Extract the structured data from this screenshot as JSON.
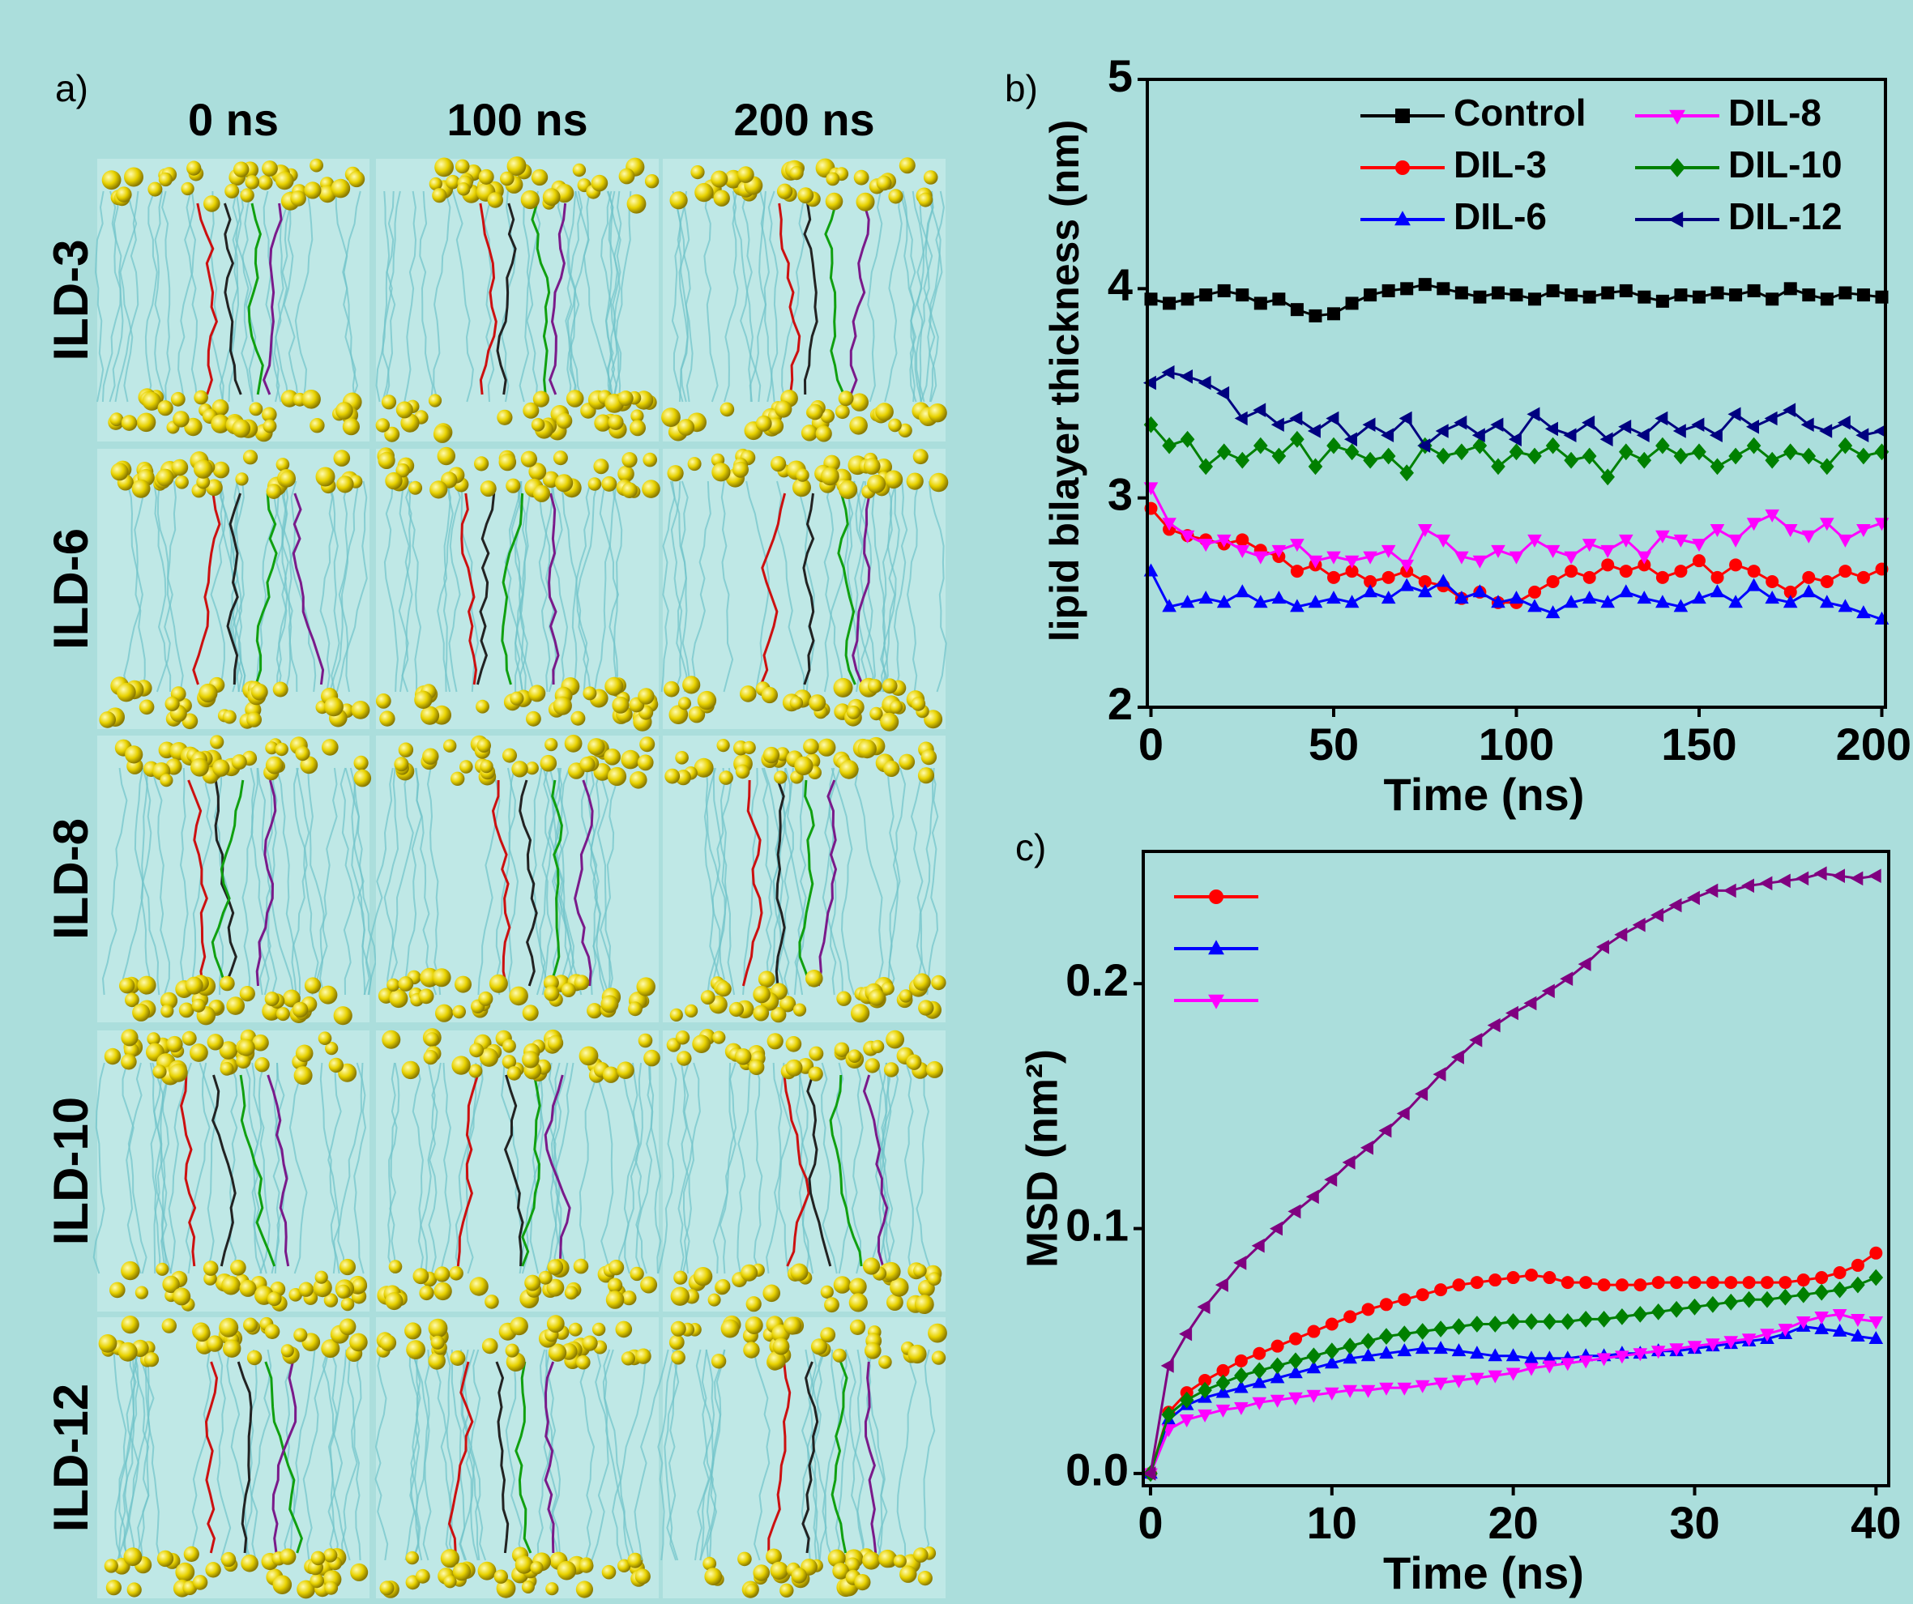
{
  "panel_a": {
    "label": "a)",
    "columns": [
      "0 ns",
      "100 ns",
      "200 ns"
    ],
    "rows": [
      "ILD-3",
      "ILD-6",
      "ILD-8",
      "ILD-10",
      "ILD-12"
    ]
  },
  "chart_data": [
    {
      "type": "line",
      "panel_label": "b)",
      "xlabel": "Time (ns)",
      "ylabel": "lipid bilayer thickness (nm)",
      "xlim": [
        -1,
        201
      ],
      "ylim": [
        2,
        5
      ],
      "xticks": [
        0,
        50,
        100,
        150,
        200
      ],
      "yticks": [
        2,
        3,
        4,
        5
      ],
      "legend": {
        "position": "upper-right",
        "columns": 2
      },
      "x": [
        0,
        5,
        10,
        15,
        20,
        25,
        30,
        35,
        40,
        45,
        50,
        55,
        60,
        65,
        70,
        75,
        80,
        85,
        90,
        95,
        100,
        105,
        110,
        115,
        120,
        125,
        130,
        135,
        140,
        145,
        150,
        155,
        160,
        165,
        170,
        175,
        180,
        185,
        190,
        195,
        200
      ],
      "series": [
        {
          "name": "Control",
          "color": "#000000",
          "marker": "square",
          "values": [
            3.95,
            3.93,
            3.95,
            3.97,
            3.99,
            3.97,
            3.93,
            3.95,
            3.9,
            3.87,
            3.88,
            3.93,
            3.97,
            3.99,
            4.0,
            4.02,
            4.0,
            3.98,
            3.96,
            3.98,
            3.97,
            3.95,
            3.99,
            3.97,
            3.96,
            3.98,
            3.99,
            3.96,
            3.94,
            3.97,
            3.96,
            3.98,
            3.97,
            3.99,
            3.95,
            4.0,
            3.97,
            3.95,
            3.98,
            3.97,
            3.96
          ]
        },
        {
          "name": "DIL-3",
          "color": "#ff0000",
          "marker": "circle",
          "values": [
            2.95,
            2.85,
            2.82,
            2.8,
            2.78,
            2.8,
            2.75,
            2.72,
            2.65,
            2.68,
            2.62,
            2.65,
            2.6,
            2.62,
            2.65,
            2.6,
            2.58,
            2.52,
            2.55,
            2.5,
            2.5,
            2.55,
            2.6,
            2.65,
            2.62,
            2.68,
            2.65,
            2.68,
            2.62,
            2.65,
            2.7,
            2.62,
            2.68,
            2.65,
            2.6,
            2.55,
            2.62,
            2.6,
            2.65,
            2.62,
            2.66
          ]
        },
        {
          "name": "DIL-6",
          "color": "#0000ff",
          "marker": "triangle-up",
          "values": [
            2.65,
            2.48,
            2.5,
            2.52,
            2.5,
            2.55,
            2.5,
            2.52,
            2.48,
            2.5,
            2.52,
            2.5,
            2.55,
            2.52,
            2.58,
            2.55,
            2.6,
            2.52,
            2.55,
            2.5,
            2.52,
            2.48,
            2.45,
            2.5,
            2.52,
            2.5,
            2.55,
            2.52,
            2.5,
            2.48,
            2.52,
            2.55,
            2.5,
            2.58,
            2.52,
            2.5,
            2.55,
            2.5,
            2.48,
            2.45,
            2.42
          ]
        },
        {
          "name": "DIL-8",
          "color": "#ff00ff",
          "marker": "triangle-down",
          "values": [
            3.05,
            2.88,
            2.82,
            2.78,
            2.8,
            2.75,
            2.72,
            2.75,
            2.78,
            2.7,
            2.72,
            2.7,
            2.72,
            2.75,
            2.68,
            2.85,
            2.8,
            2.72,
            2.7,
            2.75,
            2.72,
            2.8,
            2.75,
            2.72,
            2.78,
            2.75,
            2.8,
            2.72,
            2.82,
            2.8,
            2.78,
            2.85,
            2.8,
            2.88,
            2.92,
            2.85,
            2.82,
            2.88,
            2.8,
            2.85,
            2.88
          ]
        },
        {
          "name": "DIL-10",
          "color": "#008000",
          "marker": "diamond",
          "values": [
            3.35,
            3.25,
            3.28,
            3.15,
            3.22,
            3.18,
            3.25,
            3.2,
            3.28,
            3.15,
            3.25,
            3.22,
            3.18,
            3.2,
            3.12,
            3.25,
            3.2,
            3.22,
            3.25,
            3.15,
            3.22,
            3.2,
            3.25,
            3.18,
            3.2,
            3.1,
            3.22,
            3.18,
            3.25,
            3.2,
            3.22,
            3.15,
            3.2,
            3.25,
            3.18,
            3.22,
            3.2,
            3.15,
            3.25,
            3.2,
            3.22
          ]
        },
        {
          "name": "DIL-12",
          "color": "#000080",
          "marker": "triangle-left",
          "values": [
            3.55,
            3.6,
            3.58,
            3.55,
            3.5,
            3.38,
            3.42,
            3.35,
            3.38,
            3.32,
            3.38,
            3.28,
            3.35,
            3.3,
            3.38,
            3.25,
            3.32,
            3.36,
            3.3,
            3.35,
            3.28,
            3.4,
            3.33,
            3.3,
            3.36,
            3.28,
            3.34,
            3.3,
            3.38,
            3.32,
            3.35,
            3.3,
            3.4,
            3.34,
            3.38,
            3.42,
            3.35,
            3.32,
            3.36,
            3.3,
            3.32
          ]
        }
      ]
    },
    {
      "type": "line",
      "panel_label": "c)",
      "xlabel": "Time (ns)",
      "ylabel": "MSD (nm²)",
      "xlim": [
        -0.4,
        40.7
      ],
      "ylim": [
        -0.005,
        0.254
      ],
      "xticks": [
        0,
        10,
        20,
        30,
        40
      ],
      "yticks": [
        {
          "value": 0,
          "label": "0.0"
        },
        0.1,
        0.2
      ],
      "legend": {
        "position": "upper-left",
        "columns": 1
      },
      "x": [
        0,
        1,
        2,
        3,
        4,
        5,
        6,
        7,
        8,
        9,
        10,
        11,
        12,
        13,
        14,
        15,
        16,
        17,
        18,
        19,
        20,
        21,
        22,
        23,
        24,
        25,
        26,
        27,
        28,
        29,
        30,
        31,
        32,
        33,
        34,
        35,
        36,
        37,
        38,
        39,
        40
      ],
      "series": [
        {
          "color": "#ff0000",
          "marker": "circle",
          "in_legend": true,
          "values": [
            0,
            0.025,
            0.033,
            0.038,
            0.042,
            0.046,
            0.049,
            0.052,
            0.055,
            0.058,
            0.061,
            0.064,
            0.067,
            0.069,
            0.071,
            0.073,
            0.075,
            0.077,
            0.078,
            0.079,
            0.08,
            0.081,
            0.08,
            0.078,
            0.078,
            0.077,
            0.077,
            0.077,
            0.078,
            0.078,
            0.078,
            0.078,
            0.078,
            0.078,
            0.078,
            0.078,
            0.079,
            0.08,
            0.082,
            0.085,
            0.09
          ]
        },
        {
          "color": "#0000ff",
          "marker": "triangle-up",
          "in_legend": true,
          "values": [
            0,
            0.022,
            0.028,
            0.031,
            0.033,
            0.035,
            0.037,
            0.039,
            0.041,
            0.043,
            0.045,
            0.047,
            0.048,
            0.049,
            0.05,
            0.051,
            0.051,
            0.05,
            0.049,
            0.048,
            0.048,
            0.047,
            0.047,
            0.047,
            0.048,
            0.048,
            0.049,
            0.049,
            0.05,
            0.05,
            0.051,
            0.052,
            0.053,
            0.054,
            0.055,
            0.057,
            0.06,
            0.059,
            0.058,
            0.056,
            0.055
          ]
        },
        {
          "color": "#ff00ff",
          "marker": "triangle-down",
          "in_legend": true,
          "values": [
            0,
            0.018,
            0.022,
            0.024,
            0.026,
            0.027,
            0.029,
            0.03,
            0.031,
            0.032,
            0.033,
            0.034,
            0.034,
            0.035,
            0.035,
            0.036,
            0.037,
            0.038,
            0.039,
            0.04,
            0.041,
            0.043,
            0.044,
            0.045,
            0.046,
            0.047,
            0.048,
            0.049,
            0.05,
            0.051,
            0.052,
            0.053,
            0.054,
            0.055,
            0.057,
            0.059,
            0.062,
            0.064,
            0.065,
            0.063,
            0.062
          ]
        },
        {
          "color": "#008000",
          "marker": "diamond",
          "in_legend": false,
          "values": [
            0,
            0.024,
            0.03,
            0.034,
            0.037,
            0.04,
            0.042,
            0.044,
            0.046,
            0.048,
            0.05,
            0.052,
            0.054,
            0.056,
            0.057,
            0.058,
            0.059,
            0.06,
            0.061,
            0.061,
            0.062,
            0.062,
            0.062,
            0.062,
            0.063,
            0.063,
            0.064,
            0.065,
            0.066,
            0.067,
            0.068,
            0.069,
            0.07,
            0.071,
            0.071,
            0.072,
            0.073,
            0.074,
            0.075,
            0.077,
            0.08
          ]
        },
        {
          "color": "#800080",
          "marker": "triangle-left",
          "in_legend": false,
          "values": [
            0,
            0.044,
            0.057,
            0.068,
            0.077,
            0.086,
            0.093,
            0.1,
            0.107,
            0.113,
            0.12,
            0.127,
            0.133,
            0.14,
            0.147,
            0.155,
            0.163,
            0.17,
            0.177,
            0.183,
            0.188,
            0.192,
            0.197,
            0.202,
            0.208,
            0.215,
            0.22,
            0.224,
            0.228,
            0.232,
            0.235,
            0.238,
            0.238,
            0.24,
            0.241,
            0.242,
            0.243,
            0.245,
            0.244,
            0.243,
            0.244
          ]
        }
      ]
    }
  ]
}
